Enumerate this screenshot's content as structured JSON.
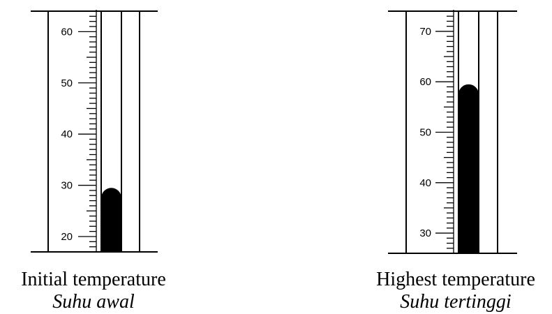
{
  "colors": {
    "ink": "#000000",
    "paper": "#ffffff"
  },
  "thermometers": [
    {
      "label_en": "Initial temperature",
      "label_ms": "Suhu awal",
      "scale_min": 17,
      "scale_max": 64,
      "major_ticks": [
        "20",
        "30",
        "40",
        "50",
        "60"
      ],
      "reading": 29.5
    },
    {
      "label_en": "Highest temperature",
      "label_ms": "Suhu tertinggi",
      "scale_min": 26,
      "scale_max": 74,
      "major_ticks": [
        "30",
        "40",
        "50",
        "60",
        "70"
      ],
      "reading": 59.5
    }
  ]
}
